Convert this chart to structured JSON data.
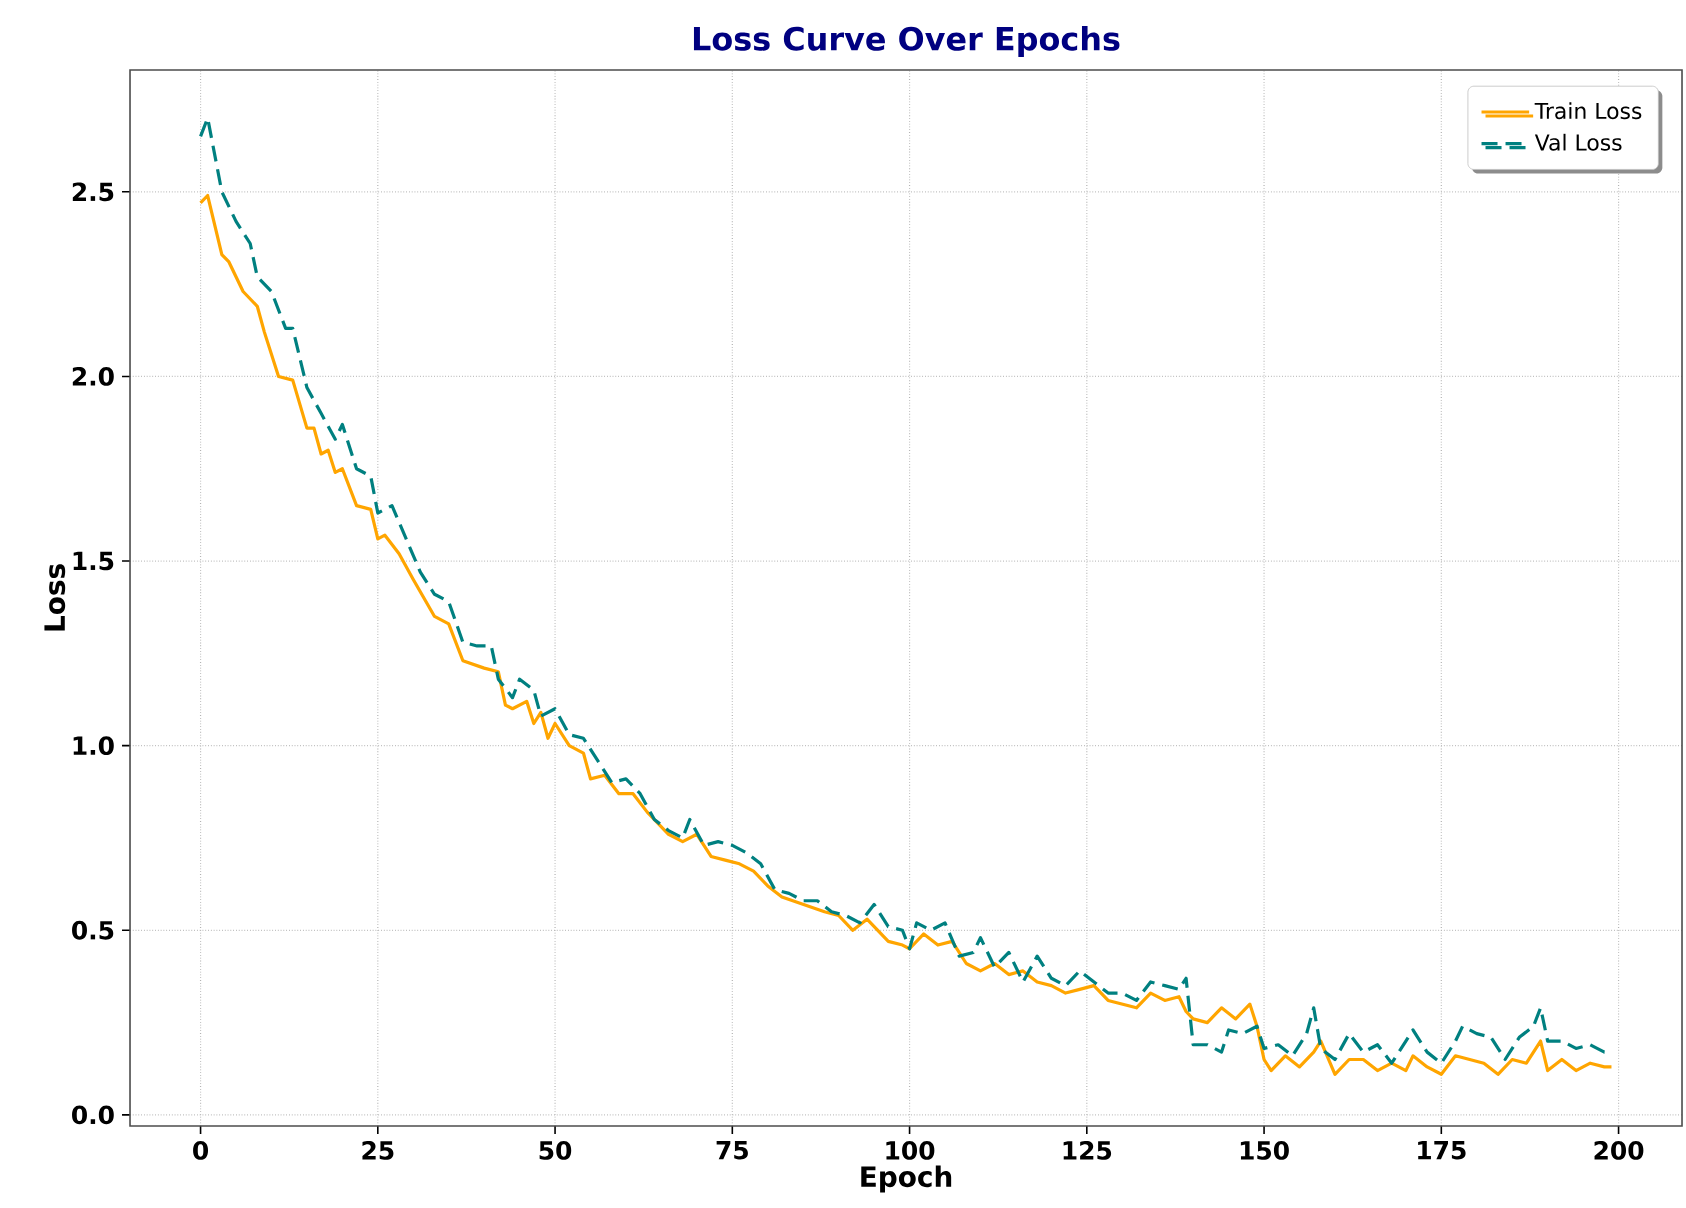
{
  "chart_data": {
    "type": "line",
    "title": "Loss Curve Over Epochs",
    "xlabel": "Epoch",
    "ylabel": "Loss",
    "xlim": [
      -9.95,
      208.95
    ],
    "ylim": [
      -0.03,
      2.83
    ],
    "xticks": [
      0,
      25,
      50,
      75,
      100,
      125,
      150,
      175,
      200
    ],
    "yticks": [
      {
        "value": 0,
        "label": "0.0"
      },
      {
        "value": 0.5,
        "label": "0.5"
      },
      {
        "value": 1,
        "label": "1.0"
      },
      {
        "value": 1.5,
        "label": "1.5"
      },
      {
        "value": 2,
        "label": "2.0"
      },
      {
        "value": 2.5,
        "label": "2.5"
      }
    ],
    "grid": true,
    "legend": "top right",
    "series": [
      {
        "name": "Train Loss",
        "color": "#ffa500",
        "line_style": "solid",
        "x": [
          0,
          1,
          3,
          4,
          6,
          8,
          9,
          11,
          13,
          15,
          16,
          17,
          18,
          19,
          20,
          22,
          24,
          25,
          26,
          28,
          30,
          33,
          35,
          37,
          40,
          42,
          43,
          44,
          46,
          47,
          48,
          49,
          50,
          52,
          54,
          55,
          57,
          59,
          61,
          63,
          66,
          68,
          70,
          72,
          74,
          76,
          78,
          80,
          82,
          85,
          88,
          90,
          92,
          94,
          97,
          99,
          100,
          102,
          104,
          106,
          108,
          110,
          112,
          114,
          116,
          118,
          120,
          122,
          124,
          126,
          128,
          130,
          132,
          134,
          136,
          138,
          139,
          140,
          142,
          144,
          146,
          148,
          149,
          150,
          151,
          153,
          155,
          157,
          158,
          160,
          162,
          164,
          166,
          168,
          170,
          171,
          173,
          175,
          177,
          179,
          181,
          183,
          185,
          187,
          189,
          190,
          192,
          194,
          196,
          198,
          199
        ],
        "values": [
          2.47,
          2.49,
          2.33,
          2.31,
          2.23,
          2.19,
          2.12,
          2.0,
          1.99,
          1.86,
          1.86,
          1.79,
          1.8,
          1.74,
          1.75,
          1.65,
          1.64,
          1.56,
          1.57,
          1.52,
          1.45,
          1.35,
          1.33,
          1.23,
          1.21,
          1.2,
          1.11,
          1.1,
          1.12,
          1.06,
          1.09,
          1.02,
          1.06,
          1.0,
          0.98,
          0.91,
          0.92,
          0.87,
          0.87,
          0.82,
          0.76,
          0.74,
          0.76,
          0.7,
          0.69,
          0.68,
          0.66,
          0.62,
          0.59,
          0.57,
          0.55,
          0.54,
          0.5,
          0.53,
          0.47,
          0.46,
          0.45,
          0.49,
          0.46,
          0.47,
          0.41,
          0.39,
          0.41,
          0.38,
          0.39,
          0.36,
          0.35,
          0.33,
          0.34,
          0.35,
          0.31,
          0.3,
          0.29,
          0.33,
          0.31,
          0.32,
          0.28,
          0.26,
          0.25,
          0.29,
          0.26,
          0.3,
          0.24,
          0.15,
          0.12,
          0.16,
          0.13,
          0.17,
          0.2,
          0.11,
          0.15,
          0.15,
          0.12,
          0.14,
          0.12,
          0.16,
          0.13,
          0.11,
          0.16,
          0.15,
          0.14,
          0.11,
          0.15,
          0.14,
          0.2,
          0.12,
          0.15,
          0.12,
          0.14,
          0.13,
          0.13
        ]
      },
      {
        "name": "Val Loss",
        "color": "#008080",
        "line_style": "dashed",
        "x": [
          0,
          1,
          3,
          5,
          7,
          8,
          10,
          12,
          13,
          15,
          17,
          19,
          20,
          22,
          24,
          25,
          27,
          29,
          31,
          33,
          35,
          37,
          39,
          41,
          42,
          44,
          45,
          47,
          48,
          50,
          52,
          54,
          56,
          58,
          60,
          62,
          64,
          66,
          68,
          69,
          71,
          73,
          75,
          77,
          79,
          81,
          83,
          85,
          87,
          89,
          91,
          93,
          95,
          97,
          99,
          100,
          101,
          103,
          105,
          107,
          109,
          110,
          112,
          114,
          116,
          118,
          120,
          122,
          124,
          126,
          128,
          130,
          132,
          134,
          136,
          138,
          139,
          140,
          142,
          144,
          145,
          147,
          149,
          150,
          152,
          154,
          156,
          157,
          158,
          160,
          162,
          164,
          166,
          168,
          170,
          171,
          173,
          175,
          177,
          178,
          180,
          182,
          184,
          186,
          188,
          189,
          190,
          192,
          194,
          196,
          198,
          199
        ],
        "values": [
          2.65,
          2.7,
          2.5,
          2.42,
          2.36,
          2.27,
          2.23,
          2.13,
          2.13,
          1.97,
          1.9,
          1.83,
          1.87,
          1.75,
          1.73,
          1.63,
          1.65,
          1.56,
          1.47,
          1.41,
          1.39,
          1.28,
          1.27,
          1.27,
          1.18,
          1.13,
          1.18,
          1.15,
          1.08,
          1.1,
          1.03,
          1.02,
          0.96,
          0.9,
          0.91,
          0.87,
          0.8,
          0.77,
          0.75,
          0.8,
          0.73,
          0.74,
          0.73,
          0.71,
          0.68,
          0.61,
          0.6,
          0.58,
          0.58,
          0.55,
          0.54,
          0.52,
          0.57,
          0.51,
          0.5,
          0.45,
          0.52,
          0.5,
          0.52,
          0.43,
          0.44,
          0.48,
          0.4,
          0.44,
          0.36,
          0.43,
          0.37,
          0.35,
          0.39,
          0.36,
          0.33,
          0.33,
          0.31,
          0.36,
          0.35,
          0.34,
          0.37,
          0.19,
          0.19,
          0.17,
          0.23,
          0.22,
          0.24,
          0.18,
          0.19,
          0.16,
          0.22,
          0.29,
          0.18,
          0.15,
          0.22,
          0.17,
          0.19,
          0.14,
          0.2,
          0.23,
          0.17,
          0.14,
          0.2,
          0.24,
          0.22,
          0.21,
          0.15,
          0.21,
          0.24,
          0.29,
          0.2,
          0.2,
          0.18,
          0.19,
          0.17,
          0.17
        ]
      }
    ]
  }
}
